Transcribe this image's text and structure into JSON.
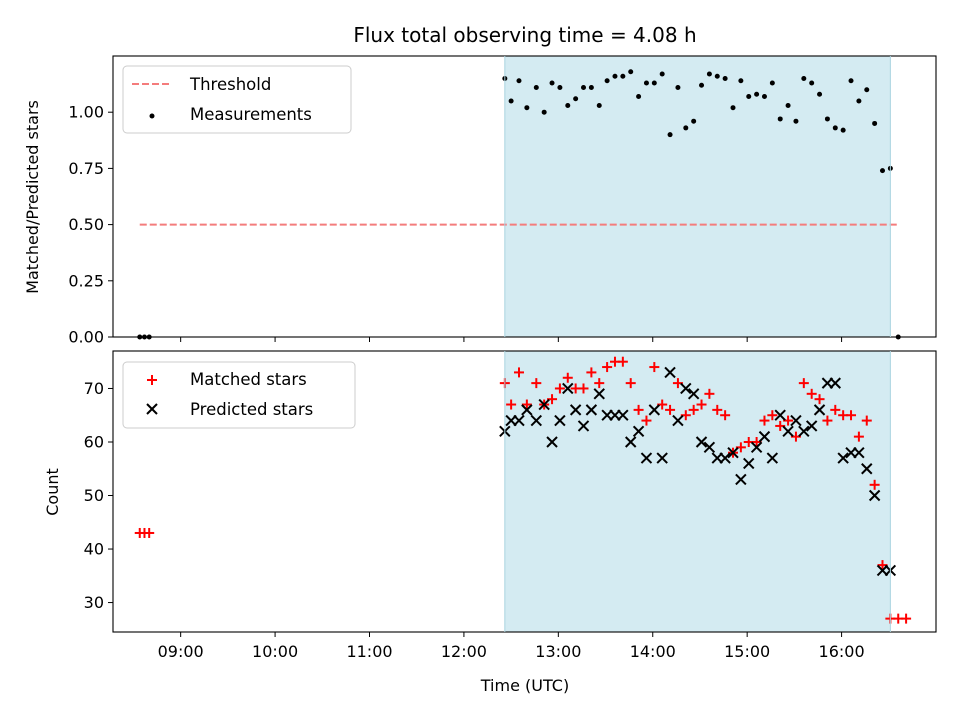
{
  "chart_data": [
    {
      "type": "scatter",
      "title": "Flux total observing time = 4.08 h",
      "xlabel": "",
      "ylabel": "Matched/Predicted stars",
      "xlim": [
        "08:17",
        "17:00"
      ],
      "ylim": [
        0.0,
        1.25
      ],
      "yticks": [
        0.0,
        0.25,
        0.5,
        0.75,
        1.0
      ],
      "ytick_labels": [
        "0.00",
        "0.25",
        "0.50",
        "0.75",
        "1.00"
      ],
      "grid": false,
      "legend_position": "upper-left",
      "shaded_span": {
        "from": "12:26",
        "to": "16:31",
        "color": "#d4ebf2"
      },
      "threshold": {
        "name": "Threshold",
        "value": 0.5,
        "x_from": "08:34",
        "x_to": "16:36",
        "color": "#f47c7c"
      },
      "series": [
        {
          "name": "Measurements",
          "marker": "dot",
          "color": "#000000",
          "x": [
            "08:34",
            "08:37",
            "08:40",
            "12:26",
            "12:30",
            "12:35",
            "12:40",
            "12:46",
            "12:51",
            "12:56",
            "13:01",
            "13:06",
            "13:11",
            "13:16",
            "13:21",
            "13:26",
            "13:31",
            "13:36",
            "13:41",
            "13:46",
            "13:51",
            "13:56",
            "14:01",
            "14:06",
            "14:11",
            "14:16",
            "14:21",
            "14:26",
            "14:31",
            "14:36",
            "14:41",
            "14:46",
            "14:51",
            "14:56",
            "15:01",
            "15:06",
            "15:11",
            "15:16",
            "15:21",
            "15:26",
            "15:31",
            "15:36",
            "15:41",
            "15:46",
            "15:51",
            "15:56",
            "16:01",
            "16:06",
            "16:11",
            "16:16",
            "16:21",
            "16:26",
            "16:31",
            "16:36"
          ],
          "y": [
            0.0,
            0.0,
            0.0,
            1.15,
            1.05,
            1.14,
            1.02,
            1.11,
            1.0,
            1.13,
            1.11,
            1.03,
            1.06,
            1.11,
            1.11,
            1.03,
            1.14,
            1.16,
            1.16,
            1.18,
            1.07,
            1.13,
            1.13,
            1.17,
            0.9,
            1.11,
            0.93,
            0.96,
            1.12,
            1.17,
            1.16,
            1.15,
            1.02,
            1.14,
            1.07,
            1.08,
            1.07,
            1.13,
            0.97,
            1.03,
            0.96,
            1.15,
            1.13,
            1.08,
            0.97,
            0.93,
            0.92,
            1.14,
            1.05,
            1.1,
            0.95,
            0.74,
            0.75,
            0.0
          ]
        }
      ]
    },
    {
      "type": "scatter",
      "title": "",
      "xlabel": "Time (UTC)",
      "ylabel": "Count",
      "xlim": [
        "08:17",
        "17:00"
      ],
      "ylim": [
        24.5,
        77
      ],
      "yticks": [
        30,
        40,
        50,
        60,
        70
      ],
      "ytick_labels": [
        "30",
        "40",
        "50",
        "60",
        "70"
      ],
      "xticks": [
        "09:00",
        "10:00",
        "11:00",
        "12:00",
        "13:00",
        "14:00",
        "15:00",
        "16:00"
      ],
      "grid": false,
      "legend_position": "upper-left",
      "shaded_span": {
        "from": "12:26",
        "to": "16:31",
        "color": "#d4ebf2"
      },
      "series": [
        {
          "name": "Matched stars",
          "marker": "plus",
          "color": "#ff0000",
          "x": [
            "08:34",
            "08:37",
            "08:40",
            "12:26",
            "12:30",
            "12:35",
            "12:40",
            "12:46",
            "12:51",
            "12:56",
            "13:01",
            "13:06",
            "13:11",
            "13:16",
            "13:21",
            "13:26",
            "13:31",
            "13:36",
            "13:41",
            "13:46",
            "13:51",
            "13:56",
            "14:01",
            "14:06",
            "14:11",
            "14:16",
            "14:21",
            "14:26",
            "14:31",
            "14:36",
            "14:41",
            "14:46",
            "14:51",
            "14:56",
            "15:01",
            "15:06",
            "15:11",
            "15:16",
            "15:21",
            "15:26",
            "15:31",
            "15:36",
            "15:41",
            "15:46",
            "15:51",
            "15:56",
            "16:01",
            "16:06",
            "16:11",
            "16:16",
            "16:21",
            "16:26",
            "16:31",
            "16:36",
            "16:41"
          ],
          "y": [
            43,
            43,
            43,
            71,
            67,
            73,
            67,
            71,
            67,
            68,
            70,
            72,
            70,
            70,
            73,
            71,
            74,
            75,
            75,
            71,
            66,
            64,
            74,
            67,
            66,
            71,
            65,
            66,
            67,
            69,
            66,
            65,
            58,
            59,
            60,
            60,
            64,
            65,
            63,
            64,
            61,
            71,
            69,
            68,
            64,
            66,
            65,
            65,
            61,
            64,
            52,
            37,
            27,
            27,
            27
          ]
        },
        {
          "name": "Predicted stars",
          "marker": "x",
          "color": "#000000",
          "x": [
            "12:26",
            "12:30",
            "12:35",
            "12:40",
            "12:46",
            "12:51",
            "12:56",
            "13:01",
            "13:06",
            "13:11",
            "13:16",
            "13:21",
            "13:26",
            "13:31",
            "13:36",
            "13:41",
            "13:46",
            "13:51",
            "13:56",
            "14:01",
            "14:06",
            "14:11",
            "14:16",
            "14:21",
            "14:26",
            "14:31",
            "14:36",
            "14:41",
            "14:46",
            "14:51",
            "14:56",
            "15:01",
            "15:06",
            "15:11",
            "15:16",
            "15:21",
            "15:26",
            "15:31",
            "15:36",
            "15:41",
            "15:46",
            "15:51",
            "15:56",
            "16:01",
            "16:06",
            "16:11",
            "16:16",
            "16:21",
            "16:26",
            "16:31"
          ],
          "y": [
            62,
            64,
            64,
            66,
            64,
            67,
            60,
            64,
            70,
            66,
            63,
            66,
            69,
            65,
            65,
            65,
            60,
            62,
            57,
            66,
            57,
            73,
            64,
            70,
            69,
            60,
            59,
            57,
            57,
            58,
            53,
            56,
            59,
            61,
            57,
            65,
            62,
            64,
            62,
            63,
            66,
            71,
            71,
            57,
            58,
            58,
            55,
            50,
            36,
            36
          ]
        }
      ]
    }
  ]
}
